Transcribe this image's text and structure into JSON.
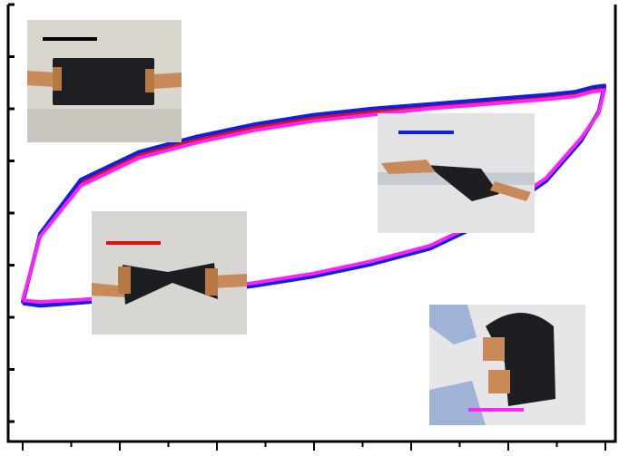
{
  "chart_data": {
    "type": "line",
    "title": "",
    "xlabel": "",
    "ylabel": "",
    "xlim": [
      0,
      100
    ],
    "ylim": [
      0,
      100
    ],
    "grid": false,
    "legend": "none",
    "series": [
      {
        "color": "#000000",
        "x": [
          0,
          3,
          10,
          20,
          30,
          40,
          50,
          60,
          70,
          80,
          90,
          95,
          98,
          100,
          99,
          96,
          90,
          80,
          70,
          60,
          50,
          40,
          30,
          20,
          10,
          3,
          0
        ],
        "y": [
          20,
          42,
          59,
          68,
          73,
          77,
          80,
          82,
          84,
          85.5,
          87,
          88,
          89.5,
          90,
          82,
          73,
          60,
          47,
          38,
          33,
          29,
          26,
          23.5,
          22,
          20.5,
          19.5,
          20
        ]
      },
      {
        "color": "#e01010",
        "x": [
          0,
          3,
          10,
          20,
          30,
          40,
          50,
          60,
          70,
          80,
          90,
          95,
          98,
          100,
          99,
          96,
          90,
          80,
          70,
          60,
          50,
          40,
          30,
          20,
          10,
          3,
          0
        ],
        "y": [
          20.3,
          42,
          59,
          68,
          73,
          77,
          80,
          82,
          84,
          85.5,
          87,
          88,
          89.5,
          90,
          82,
          73,
          60,
          47,
          38,
          33,
          29,
          26,
          23.5,
          22,
          20.5,
          19.8,
          20.3
        ]
      },
      {
        "color": "#1020e0",
        "x": [
          0,
          3,
          10,
          20,
          30,
          40,
          50,
          60,
          70,
          80,
          90,
          95,
          98,
          100,
          99,
          96,
          90,
          80,
          70,
          60,
          50,
          40,
          30,
          20,
          10,
          3,
          0
        ],
        "y": [
          19.8,
          42.5,
          60,
          69,
          74,
          78,
          81,
          83,
          84.5,
          86,
          87.5,
          88.5,
          90,
          90.5,
          82,
          72.5,
          59.5,
          46.5,
          37.5,
          32.5,
          28.5,
          25.5,
          23,
          21.5,
          20,
          19,
          19.8
        ]
      },
      {
        "color": "#ff22ff",
        "x": [
          0,
          3,
          10,
          20,
          30,
          40,
          50,
          60,
          70,
          80,
          90,
          95,
          98,
          100,
          99,
          96,
          90,
          80,
          70,
          60,
          50,
          40,
          30,
          20,
          10,
          3,
          0
        ],
        "y": [
          20.8,
          41.5,
          58,
          67,
          72,
          76,
          79,
          81,
          83,
          84.5,
          86,
          87,
          88.5,
          89,
          81.5,
          73.5,
          60.5,
          47.5,
          38.5,
          33.5,
          29.5,
          26.5,
          24,
          22.5,
          21,
          20.3,
          20.8
        ]
      }
    ],
    "annotations": [
      {
        "marker_color": "#000000",
        "position": "top-left"
      },
      {
        "marker_color": "#e01010",
        "position": "middle-left"
      },
      {
        "marker_color": "#1020e0",
        "position": "middle-right"
      },
      {
        "marker_color": "#ff22ff",
        "position": "bottom-right"
      }
    ]
  }
}
